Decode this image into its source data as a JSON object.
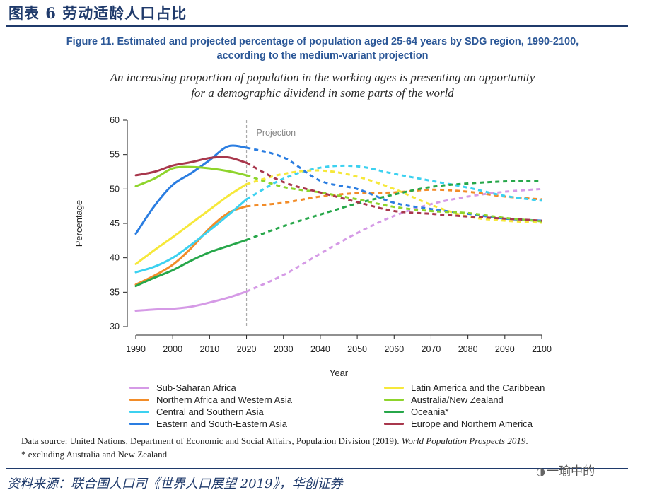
{
  "header": {
    "title": "图表 6  劳动适龄人口占比"
  },
  "figure": {
    "title_line1": "Figure 11. Estimated and projected percentage of population aged 25-64 years by SDG region, 1990-2100,",
    "title_line2": "according to the medium-variant projection",
    "subtitle_line1": "An increasing proportion of population in the working ages is presenting an opportunity",
    "subtitle_line2": "for a demographic dividend in some parts of the world"
  },
  "chart_data": {
    "type": "line",
    "xlabel": "Year",
    "ylabel": "Percentage",
    "xlim": [
      1990,
      2100
    ],
    "ylim": [
      30,
      60
    ],
    "x_ticks": [
      "1990",
      "2000",
      "2010",
      "2020",
      "2030",
      "2040",
      "2050",
      "2060",
      "2070",
      "2080",
      "2090",
      "2100"
    ],
    "y_ticks": [
      "30",
      "35",
      "40",
      "45",
      "50",
      "55",
      "60"
    ],
    "projection_start": 2020,
    "projection_label": "Projection",
    "legend_position": "bottom",
    "series": [
      {
        "name": "Sub-Saharan Africa",
        "color": "#d59ae6",
        "x": [
          1990,
          1995,
          2000,
          2005,
          2010,
          2015,
          2020,
          2030,
          2040,
          2050,
          2060,
          2070,
          2080,
          2090,
          2100
        ],
        "y": [
          32.3,
          32.5,
          32.6,
          32.9,
          33.5,
          34.2,
          35.1,
          37.5,
          40.6,
          43.6,
          46.1,
          47.8,
          48.9,
          49.6,
          50.0
        ]
      },
      {
        "name": "Northern Africa and Western Asia",
        "color": "#f28c28",
        "x": [
          1990,
          1995,
          2000,
          2005,
          2010,
          2015,
          2020,
          2030,
          2040,
          2050,
          2060,
          2070,
          2080,
          2090,
          2100
        ],
        "y": [
          36.1,
          37.4,
          39.0,
          41.4,
          44.3,
          46.5,
          47.5,
          48.0,
          48.9,
          49.4,
          49.5,
          49.9,
          49.6,
          48.9,
          48.5
        ]
      },
      {
        "name": "Central and Southern Asia",
        "color": "#3cd1f0",
        "x": [
          1990,
          1995,
          2000,
          2005,
          2010,
          2015,
          2020,
          2030,
          2040,
          2050,
          2060,
          2070,
          2080,
          2090,
          2100
        ],
        "y": [
          37.9,
          38.7,
          40.0,
          41.9,
          44.0,
          46.2,
          48.5,
          51.5,
          53.1,
          53.3,
          52.2,
          51.2,
          50.2,
          49.0,
          48.3
        ]
      },
      {
        "name": "Eastern and South-Eastern Asia",
        "color": "#2a7de1",
        "x": [
          1990,
          1995,
          2000,
          2005,
          2010,
          2015,
          2020,
          2030,
          2040,
          2050,
          2060,
          2070,
          2080,
          2090,
          2100
        ],
        "y": [
          43.5,
          47.5,
          50.6,
          52.3,
          54.2,
          56.2,
          56.0,
          54.6,
          51.2,
          50.0,
          48.0,
          47.1,
          46.4,
          45.7,
          45.4
        ]
      },
      {
        "name": "Latin America and the Caribbean",
        "color": "#f6e83a",
        "x": [
          1990,
          1995,
          2000,
          2005,
          2010,
          2015,
          2020,
          2030,
          2040,
          2050,
          2060,
          2070,
          2080,
          2090,
          2100
        ],
        "y": [
          39.1,
          41.1,
          43.0,
          45.0,
          47.0,
          49.0,
          50.7,
          52.2,
          52.7,
          51.8,
          50.0,
          47.7,
          46.0,
          45.4,
          45.1
        ]
      },
      {
        "name": "Australia/New Zealand",
        "color": "#8ed42c",
        "x": [
          1990,
          1995,
          2000,
          2005,
          2010,
          2015,
          2020,
          2030,
          2040,
          2050,
          2060,
          2070,
          2080,
          2090,
          2100
        ],
        "y": [
          50.4,
          51.5,
          53.0,
          53.2,
          53.0,
          52.6,
          52.0,
          50.3,
          49.5,
          48.5,
          47.4,
          46.8,
          46.5,
          45.8,
          45.3
        ]
      },
      {
        "name": "Oceania*",
        "color": "#27a74a",
        "x": [
          1990,
          1995,
          2000,
          2005,
          2010,
          2015,
          2020,
          2030,
          2040,
          2050,
          2060,
          2070,
          2080,
          2090,
          2100
        ],
        "y": [
          35.9,
          37.1,
          38.2,
          39.6,
          40.8,
          41.7,
          42.6,
          44.6,
          46.3,
          47.9,
          49.2,
          50.3,
          50.8,
          51.1,
          51.2
        ]
      },
      {
        "name": "Europe and Northern America",
        "color": "#a8374c",
        "x": [
          1990,
          1995,
          2000,
          2005,
          2010,
          2015,
          2020,
          2030,
          2040,
          2050,
          2060,
          2070,
          2080,
          2090,
          2100
        ],
        "y": [
          52.0,
          52.5,
          53.4,
          53.9,
          54.5,
          54.6,
          53.8,
          51.0,
          49.5,
          48.1,
          46.8,
          46.4,
          46.0,
          45.7,
          45.4
        ]
      }
    ]
  },
  "source": {
    "line1": "Data source: United Nations, Department of Economic and Social Affairs, Population Division (2019).",
    "line1_italic": "World Population Prospects 2019",
    "line1_end": ".",
    "line2": "* excluding Australia and New Zealand"
  },
  "footer": {
    "source": "资料来源：联合国人口司《世界人口展望 2019》，华创证券",
    "watermark": "一瑜中的"
  }
}
